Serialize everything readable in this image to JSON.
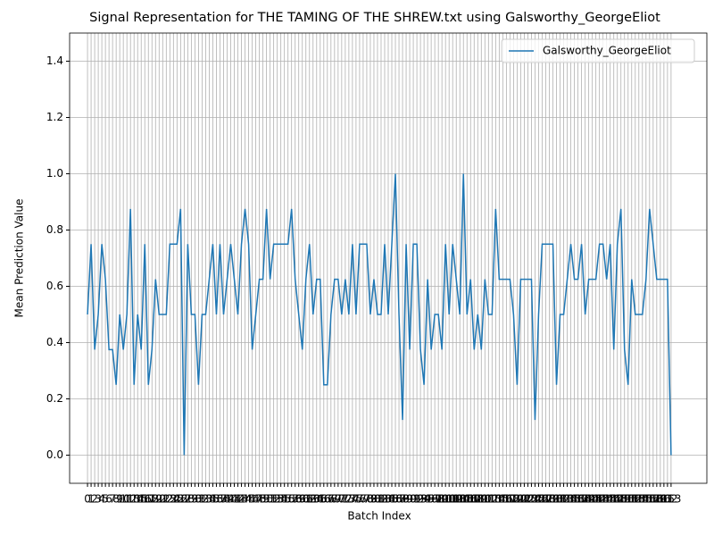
{
  "chart_data": {
    "type": "line",
    "title": "Signal Representation for THE TAMING OF THE SHREW.txt using Galsworthy_GeorgeEliot",
    "x_label": "Batch Index",
    "y_label": "Mean Prediction Value",
    "x": [
      0,
      1,
      2,
      3,
      4,
      5,
      6,
      7,
      8,
      9,
      10,
      11,
      12,
      13,
      14,
      15,
      16,
      17,
      18,
      19,
      20,
      21,
      22,
      23,
      24,
      25,
      26,
      27,
      28,
      29,
      30,
      31,
      32,
      33,
      34,
      35,
      36,
      37,
      38,
      39,
      40,
      41,
      42,
      43,
      44,
      45,
      46,
      47,
      48,
      49,
      50,
      51,
      52,
      53,
      54,
      55,
      56,
      57,
      58,
      59,
      60,
      61,
      62,
      63,
      64,
      65,
      66,
      67,
      68,
      69,
      70,
      71,
      72,
      73,
      74,
      75,
      76,
      77,
      78,
      79,
      80,
      81,
      82,
      83,
      84,
      85,
      86,
      87,
      88,
      89,
      90,
      91,
      92,
      93,
      94,
      95,
      96,
      97,
      98,
      99,
      100,
      101,
      102,
      103,
      104,
      105,
      106,
      107,
      108,
      109,
      110,
      111,
      112,
      113,
      114,
      115,
      116,
      117,
      118,
      119,
      120,
      121,
      122,
      123,
      124,
      125,
      126,
      127,
      128,
      129,
      130,
      131,
      132,
      133,
      134,
      135,
      136,
      137,
      138,
      139,
      140,
      141,
      142,
      143,
      144,
      145,
      146,
      147,
      148,
      149,
      150,
      151,
      152,
      153,
      154,
      155,
      156,
      157,
      158,
      159,
      160,
      161,
      162,
      163
    ],
    "series": [
      {
        "name": "Galsworthy_GeorgeEliot",
        "color": "#1f77b4",
        "values": [
          0.5,
          0.75,
          0.375,
          0.5,
          0.75,
          0.625,
          0.375,
          0.375,
          0.25,
          0.5,
          0.375,
          0.5,
          0.875,
          0.25,
          0.5,
          0.375,
          0.75,
          0.25,
          0.375,
          0.625,
          0.5,
          0.5,
          0.5,
          0.75,
          0.75,
          0.75,
          0.875,
          0,
          0.75,
          0.5,
          0.5,
          0.25,
          0.5,
          0.5,
          0.625,
          0.75,
          0.5,
          0.75,
          0.5,
          0.625,
          0.75,
          0.625,
          0.5,
          0.75,
          0.875,
          0.75,
          0.375,
          0.5,
          0.625,
          0.625,
          0.875,
          0.625,
          0.75,
          0.75,
          0.75,
          0.75,
          0.75,
          0.875,
          0.625,
          0.5,
          0.375,
          0.625,
          0.75,
          0.5,
          0.625,
          0.625,
          0.25,
          0.25,
          0.5,
          0.625,
          0.625,
          0.5,
          0.625,
          0.5,
          0.75,
          0.5,
          0.75,
          0.75,
          0.75,
          0.5,
          0.625,
          0.5,
          0.5,
          0.75,
          0.5,
          0.75,
          1,
          0.5,
          0.125,
          0.75,
          0.375,
          0.75,
          0.75,
          0.375,
          0.25,
          0.625,
          0.375,
          0.5,
          0.5,
          0.375,
          0.75,
          0.5,
          0.75,
          0.625,
          0.5,
          1,
          0.5,
          0.625,
          0.375,
          0.5,
          0.375,
          0.625,
          0.5,
          0.5,
          0.875,
          0.625,
          0.625,
          0.625,
          0.625,
          0.5,
          0.25,
          0.625,
          0.625,
          0.625,
          0.625,
          0.125,
          0.5,
          0.75,
          0.75,
          0.75,
          0.75,
          0.25,
          0.5,
          0.5,
          0.625,
          0.75,
          0.625,
          0.625,
          0.75,
          0.5,
          0.625,
          0.625,
          0.625,
          0.75,
          0.75,
          0.625,
          0.75,
          0.375,
          0.75,
          0.875,
          0.375,
          0.25,
          0.625,
          0.5,
          0.5,
          0.5,
          0.625,
          0.875,
          0.75,
          0.625,
          0.625,
          0.625,
          0.625,
          0
        ]
      }
    ],
    "xlim": [
      -5,
      173
    ],
    "xticks": [
      0,
      1,
      2,
      3,
      4,
      5,
      6,
      7,
      8,
      9,
      10,
      11,
      12,
      13,
      14,
      15,
      16,
      17,
      18,
      19,
      20,
      21,
      22,
      23,
      24,
      25,
      26,
      27,
      28,
      29,
      30,
      31,
      32,
      33,
      34,
      35,
      36,
      37,
      38,
      39,
      40,
      41,
      42,
      43,
      44,
      45,
      46,
      47,
      48,
      49,
      50,
      51,
      52,
      53,
      54,
      55,
      56,
      57,
      58,
      59,
      60,
      61,
      62,
      63,
      64,
      65,
      66,
      67,
      68,
      69,
      70,
      71,
      72,
      73,
      74,
      75,
      76,
      77,
      78,
      79,
      80,
      81,
      82,
      83,
      84,
      85,
      86,
      87,
      88,
      89,
      90,
      91,
      92,
      93,
      94,
      95,
      96,
      97,
      98,
      99,
      100,
      101,
      102,
      103,
      104,
      105,
      106,
      107,
      108,
      109,
      110,
      111,
      112,
      113,
      114,
      115,
      116,
      117,
      118,
      119,
      120,
      121,
      122,
      123,
      124,
      125,
      126,
      127,
      128,
      129,
      130,
      131,
      132,
      133,
      134,
      135,
      136,
      137,
      138,
      139,
      140,
      141,
      142,
      143,
      144,
      145,
      146,
      147,
      148,
      149,
      150,
      151,
      152,
      153,
      154,
      155,
      156,
      157,
      158,
      159,
      160,
      161,
      162,
      163
    ],
    "ylim": [
      -0.1,
      1.5
    ],
    "yticks": [
      {
        "value": 0,
        "label": "0.0"
      },
      0.2,
      0.4,
      0.6,
      0.8,
      {
        "value": 1,
        "label": "1.0"
      },
      1.2,
      1.4
    ],
    "grid": true,
    "legend": "upper right"
  }
}
